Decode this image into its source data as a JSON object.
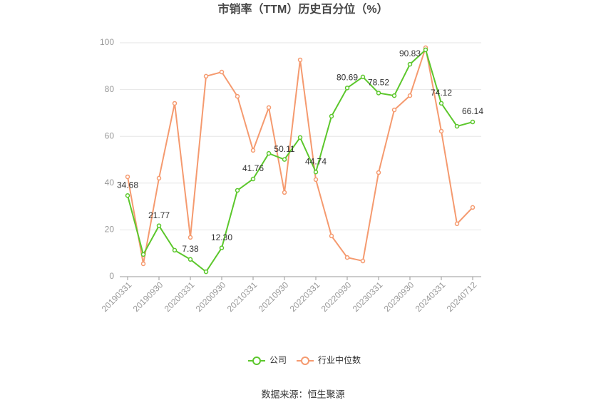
{
  "chart_data": {
    "type": "line",
    "title": "市销率（TTM）历史百分位（%）",
    "source": "数据来源：恒生聚源",
    "categories": [
      "20190331",
      null,
      "20190930",
      null,
      "20200331",
      null,
      "20200930",
      null,
      "20210331",
      null,
      "20210930",
      null,
      "20220331",
      null,
      "20220930",
      null,
      "20230331",
      null,
      "20230930",
      null,
      "20240331",
      null,
      "20240712"
    ],
    "series": [
      {
        "name": "公司",
        "color": "#5cc72c",
        "values": [
          34.68,
          9.5,
          21.77,
          11.3,
          7.38,
          2.1,
          12.3,
          36.9,
          41.76,
          52.7,
          50.11,
          59.5,
          44.74,
          68.6,
          80.69,
          85.4,
          78.52,
          77.4,
          90.83,
          97.0,
          74.12,
          64.3,
          66.14
        ],
        "value_labels": [
          "34.68",
          null,
          "21.77",
          null,
          "7.38",
          null,
          "12.30",
          null,
          "41.76",
          null,
          "50.11",
          null,
          "44.74",
          null,
          "80.69",
          null,
          "78.52",
          null,
          "90.83",
          null,
          "74.12",
          null,
          "66.14"
        ]
      },
      {
        "name": "行业中位数",
        "color": "#f59a6f",
        "values": [
          42.7,
          5.5,
          42.1,
          74.1,
          16.8,
          85.7,
          87.5,
          77.1,
          54.0,
          72.3,
          36.0,
          92.7,
          41.5,
          17.4,
          8.2,
          6.7,
          44.5,
          71.3,
          77.4,
          97.9,
          62.2,
          22.6,
          29.6
        ]
      }
    ],
    "ylim": [
      0,
      100
    ],
    "yticks": [
      0,
      20,
      40,
      60,
      80,
      100
    ],
    "grid": true,
    "legend": "bottom"
  }
}
